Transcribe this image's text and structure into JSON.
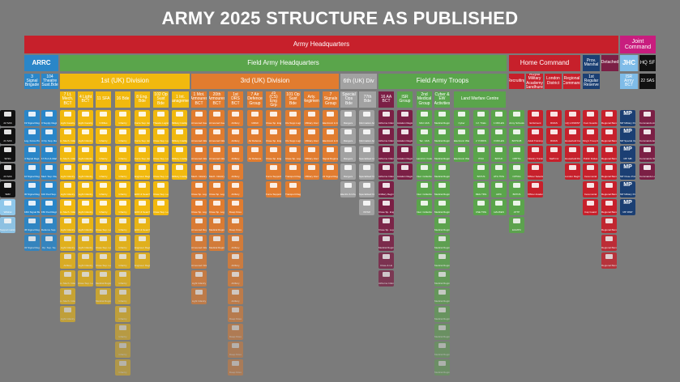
{
  "title": "ARMY 2025 STRUCTURE AS PUBLISHED",
  "headquarters": {
    "army": "Army Headquarters",
    "joint": "Joint Command",
    "arrc": "ARRC",
    "field_army": "Field Army Headquarters",
    "home_command": "Home Command",
    "jhc": "JHC",
    "hq_sf": "HQ SF"
  },
  "divisions": {
    "first": "1st (UK) Division",
    "third": "3rd (UK) Division",
    "sixth": "6th (UK) Div",
    "troops": "Field Army Troops"
  },
  "small_headers": [
    "3 Signal Brigade",
    "104 Theatre Sust.Bde",
    "7 Lt. Mech. BCT",
    "4 Light BCT",
    "11 SFA",
    "16 Bde",
    "8 Eng. Bde",
    "102 Op Sust Bde",
    "1 Int. Management",
    "1 Mot. Armoured BCT",
    "20th Armoured BCT",
    "1st DRS BCT",
    "7 Air Defence Group",
    "25 (CS) Eng Grp",
    "101 Op Sust Bde",
    "Arty. Regiment",
    "7 Signals Group",
    "Special Ops Bde",
    "77th Bde",
    "16 AA BCT",
    "ISR Group",
    "2nd Medical Group",
    "Cyber & EW Activities",
    "Land Warfare Centre",
    "Recruiting",
    "Royal Military Academy Sandhurst",
    "London District",
    "Regional Command",
    "1st Regular Reserve",
    "Prov. Marshal",
    "Detached",
    "ISR Army BCT",
    "22 SAS"
  ],
  "columns": [
    {
      "color": "#2a86c8",
      "tiles": [
        "19 Signal Regt.",
        "Log. Force Prov. Sq.",
        "4 Signal Regt.",
        "10 Signal Regt.",
        "30 Signal Regt.",
        "16th Signal Batln.",
        "45 Signal Regt.",
        "32 Signal Regt."
      ]
    },
    {
      "color": "#2a86c8",
      "tiles": [
        "3 Supply Regiment",
        "4 Op. Sup. Regt.",
        "17 Port & Maritime",
        "Med. Sup. Regt.",
        "102 Fwd Sup. Regt.",
        "150 Fwd Regt.",
        "Defence Sup. Regt.",
        "Op. Sup. Sq."
      ]
    },
    {
      "color": "#f1b90e",
      "tiles": [
        "Light Cavalry",
        "Lt. Mech. Infantry",
        "Lt. Mech. Infantry",
        "Light Infantry",
        "Light Infantry",
        "Lt. Mech. Infantry",
        "Light Infantry",
        "Light Infantry",
        "Artillery",
        "Lt. Mech. Infantry",
        "Lt. Mech. Infantry",
        "Light Infantry"
      ]
    },
    {
      "color": "#f1b90e",
      "tiles": [
        "Light Cavalry",
        "Light Infantry",
        "Light Infantry",
        "Light Infantry",
        "Light Infantry",
        "Light Infantry",
        "Light Infantry",
        "Light Infantry",
        "Light Infantry",
        "Close Sup. Logistics"
      ]
    },
    {
      "color": "#f1b90e",
      "tiles": [
        "3 Rifles",
        "Infantry",
        "Infantry",
        "Infantry",
        "Infantry",
        "Infantry",
        "Close Sup. Logistics",
        "Close Sup. Logistics",
        "Close Sup. Logistics",
        "Medical Regiment",
        "Medical Regiment"
      ]
    },
    {
      "color": "#f1b90e",
      "tiles": [
        "Infantry",
        "Infantry",
        "Infantry",
        "Infantry",
        "Infantry",
        "Infantry",
        "Infantry",
        "Infantry",
        "Infantry",
        "Infantry",
        "Infantry",
        "Infantry",
        "Infantry",
        "Infantry",
        "Infantry",
        "Infantry"
      ]
    },
    {
      "color": "#f1b90e",
      "tiles": [
        "Force Sup. Engineer",
        "Force Sup. Engineer",
        "Force Sup. Engineer",
        "Engineer Regt.",
        "EOD & Search",
        "EOD & Search",
        "EOD & Search",
        "Engineer Regt.",
        "Engineer Regt."
      ]
    },
    {
      "color": "#f1b90e",
      "tiles": [
        "Theatre Logistic",
        "Close Sup. Logistics",
        "Close Sup. Logistics",
        "Close Sup. Logistics",
        "Close Sup. Logistics",
        "Close Sup. Logistics"
      ]
    },
    {
      "color": "#f1b90e",
      "tiles": [
        "Military Intelligence",
        "Military Intelligence",
        "Military Intelligence",
        "Military Intelligence"
      ]
    },
    {
      "color": "#e17c2f",
      "tiles": [
        "Armoured Cavalry",
        "Armoured Infantry",
        "Armoured Infantry",
        "Mech. Infantry",
        "Close Sp. Logistics",
        "Close Sp. Logistics",
        "Armoured Regiment",
        "Armoured Infantry",
        "Armoured Infantry",
        "Light Infantry",
        "Light Infantry"
      ]
    },
    {
      "color": "#e17c2f",
      "tiles": [
        "Armoured Cavalry",
        "Armoured Infantry",
        "Armoured Infantry",
        "Mech. Infantry",
        "Close Sp. Logistics",
        "Close Sp. Logistics",
        "Medical Regiment",
        "Medical Regiment"
      ]
    },
    {
      "color": "#e17c2f",
      "tiles": [
        "Artillery",
        "Artillery",
        "Artillery",
        "Artillery",
        "Artillery",
        "Deep Fires",
        "Deep Fires",
        "Artillery",
        "Artillery",
        "Artillery",
        "Artillery",
        "Deep Fires",
        "Deep Fires",
        "Deep Fires",
        "Deep Fires"
      ]
    },
    {
      "color": "#e17c2f",
      "tiles": [
        "GBAD",
        "Air Defence",
        "Air Defence"
      ]
    },
    {
      "color": "#e17c2f",
      "tiles": [
        "Close Sp. Engineer",
        "Close Sp. Engineer",
        "Close Sp. Engineer",
        "Force Support",
        "Force Support"
      ]
    },
    {
      "color": "#e17c2f",
      "tiles": [
        "Clo Supp Logistics",
        "Clo Supp Logistics",
        "Close Sp. Logistics",
        "Transport Regiment",
        "Transport Regiment"
      ]
    },
    {
      "color": "#e17c2f",
      "tiles": [
        "Military Intel",
        "Military Intel",
        "Military Intel",
        "Military Intel"
      ]
    },
    {
      "color": "#e17c2f",
      "tiles": [
        "Electronic & Info. Sp.",
        "Electronic & Info. Sp.",
        "Signal Regiment",
        "21 Signal Regt."
      ]
    },
    {
      "color": "#a2a2a2",
      "tiles": [
        "Rangers",
        "Rangers",
        "Rangers",
        "Rangers",
        "Electric & Info. Sp."
      ]
    },
    {
      "color": "#a2a2a2",
      "tiles": [
        "Information Activities",
        "Information Activities",
        "Specialised Infantry",
        "Specialised Infantry",
        "Specialised Infantry",
        "ISTAR"
      ]
    },
    {
      "color": "#7b1f45",
      "tiles": [
        "Airborne Infantry",
        "Airborne Infantry",
        "Airborne Infantry",
        "Airborne Infantry",
        "Artillery Regiment",
        "Close Sp. Engineer",
        "Close Sp. Logistics",
        "Medical Regiment",
        "Close & LE",
        "Airborne Infantry"
      ]
    },
    {
      "color": "#7b1f45",
      "tiles": [
        "Aviation Regiment",
        "Aviation Regiment",
        "Aviation Regiment",
        "Aviation Regiment"
      ]
    },
    {
      "color": "#5aa54b",
      "tiles": [
        "Mixt UAS",
        "Tac. UAS",
        "Land Int. Fusion Ctr.",
        "Intel. Collection",
        "Intel. Collection",
        "Intel. Collection"
      ]
    },
    {
      "color": "#5aa54b",
      "tiles": [
        "Medical Regiment",
        "Medical Regiment",
        "Medical Regiment",
        "Medical Regiment",
        "Medical Regiment",
        "Medical Regiment",
        "Medical Regiment",
        "Medical Regiment",
        "Medical Regiment",
        "Medical Regiment",
        "Medical Regiment",
        "Medical Regiment",
        "Medical Regiment",
        "Medical Regiment",
        "Medical Regiment",
        "Medical Regiment"
      ]
    },
    {
      "color": "#5aa54b",
      "tiles": [
        "Cyber",
        "Electronic Warfare",
        "Electronic Warfare"
      ]
    },
    {
      "color": "#5aa54b",
      "tiles": [
        "Inf. Trials",
        "2 YORKS",
        "ITDU",
        "BATUS",
        "REG TRG",
        "CSE TRG"
      ]
    },
    {
      "color": "#5aa54b",
      "tiles": [
        "1 RIFLES",
        "3 RIFLES",
        "BATUK",
        "ATG TRG",
        "AWC",
        "HAUKEN"
      ]
    },
    {
      "color": "#5aa54b",
      "tiles": [
        "Army Schools",
        "BATSUB",
        "CBTTG",
        "OPTAG",
        "BATUS",
        "ATTP",
        "EGMPC"
      ]
    },
    {
      "color": "#c7202b",
      "tiles": [
        "Enlistment",
        "Adult Training",
        "Infantry Training",
        "Officer Selection",
        "Officer Academy"
      ]
    },
    {
      "color": "#c7202b",
      "tiles": [
        "RMAS",
        "RMAS",
        "Staff Cnr"
      ]
    },
    {
      "color": "#c7202b",
      "tiles": [
        "HQ LONDIST",
        "Household Cavalry",
        "Household Div. Bands",
        "London Regiment"
      ]
    },
    {
      "color": "#c7202b",
      "tiles": [
        "Foot Guards",
        "King's Troop RHA",
        "Public Duties",
        "Ceremonial",
        "Ceremonial",
        "Cap Guard"
      ]
    },
    {
      "color": "#c7202b",
      "tiles": [
        "Regional Band",
        "Regional Band",
        "Regional Band",
        "Regional Band",
        "Regional Band",
        "Regional Band",
        "Regional Band",
        "Regional Band",
        "Regional Band"
      ]
    },
    {
      "color": "#1b3f73",
      "tiles": [
        "MP Military Police",
        "MP Special Operations",
        "MP SIB",
        "MP Close Protection",
        "MP Military Police",
        "MP RMP"
      ]
    },
    {
      "color": "#7b1f45",
      "tiles": [
        "Commando Artillery",
        "Commando Engineers",
        "Commando Signals",
        "Commando Logistics"
      ]
    },
    {
      "color": "#8fc7ea",
      "tiles": [
        "Attack Aviation",
        "Rescue",
        "Rescue",
        "Lynx",
        "Puma",
        "Wildcat",
        "Support Helicopter"
      ]
    },
    {
      "color": "#111111",
      "tiles": [
        "22 SAS",
        "21 SAS",
        "SFSG",
        "23 SAS",
        "SRR"
      ]
    }
  ]
}
